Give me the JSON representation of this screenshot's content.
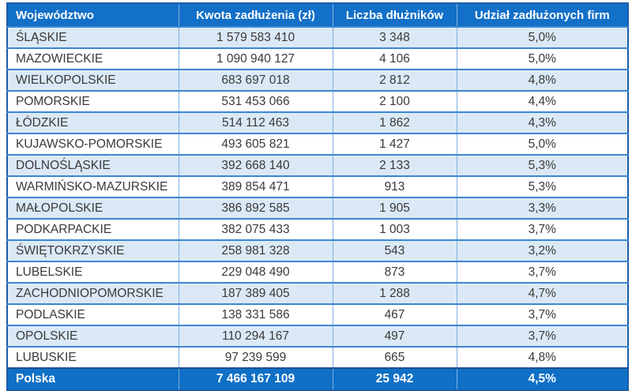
{
  "colors": {
    "header_bg": "#1370c8",
    "footer_bg": "#0f70c6",
    "row_alt_bg": "#dbe9f6",
    "row_bg": "#ffffff",
    "grid_vertical": "#7fb0e0",
    "grid_horizontal": "#3d86d2",
    "footer_divider": "#1a4f8f",
    "outer_border": "#1d5ca6",
    "body_text": "#3a3a3a",
    "header_text": "#ffffff"
  },
  "table": {
    "columns": [
      {
        "label": "Województwo"
      },
      {
        "label": "Kwota zadłużenia (zł)"
      },
      {
        "label": "Liczba dłużników"
      },
      {
        "label": "Udział zadłużonych firm"
      }
    ],
    "rows": [
      {
        "wojewodztwo": "ŚLĄSKIE",
        "kwota": "1 579 583 410",
        "liczba": "3 348",
        "udzial": "5,0%"
      },
      {
        "wojewodztwo": "MAZOWIECKIE",
        "kwota": "1 090 940 127",
        "liczba": "4 106",
        "udzial": "5,0%"
      },
      {
        "wojewodztwo": "WIELKOPOLSKIE",
        "kwota": "683 697 018",
        "liczba": "2 812",
        "udzial": "4,8%"
      },
      {
        "wojewodztwo": "POMORSKIE",
        "kwota": "531 453 066",
        "liczba": "2 100",
        "udzial": "4,4%"
      },
      {
        "wojewodztwo": "ŁÓDZKIE",
        "kwota": "514 112 463",
        "liczba": "1 862",
        "udzial": "4,3%"
      },
      {
        "wojewodztwo": "KUJAWSKO-POMORSKIE",
        "kwota": "493 605 821",
        "liczba": "1 427",
        "udzial": "5,0%"
      },
      {
        "wojewodztwo": "DOLNOŚLĄSKIE",
        "kwota": "392 668 140",
        "liczba": "2 133",
        "udzial": "5,3%"
      },
      {
        "wojewodztwo": "WARMIŃSKO-MAZURSKIE",
        "kwota": "389 854 471",
        "liczba": "913",
        "udzial": "5,3%"
      },
      {
        "wojewodztwo": "MAŁOPOLSKIE",
        "kwota": "386 892 585",
        "liczba": "1 905",
        "udzial": "3,3%"
      },
      {
        "wojewodztwo": "PODKARPACKIE",
        "kwota": "382 075 433",
        "liczba": "1 003",
        "udzial": "3,7%"
      },
      {
        "wojewodztwo": "ŚWIĘTOKRZYSKIE",
        "kwota": "258 981 328",
        "liczba": "543",
        "udzial": "3,2%"
      },
      {
        "wojewodztwo": "LUBELSKIE",
        "kwota": "229 048 490",
        "liczba": "873",
        "udzial": "3,7%"
      },
      {
        "wojewodztwo": "ZACHODNIOPOMORSKIE",
        "kwota": "187 389 405",
        "liczba": "1 288",
        "udzial": "4,7%"
      },
      {
        "wojewodztwo": "PODLASKIE",
        "kwota": "138 331 586",
        "liczba": "467",
        "udzial": "3,7%"
      },
      {
        "wojewodztwo": "OPOLSKIE",
        "kwota": "110 294 167",
        "liczba": "497",
        "udzial": "3,7%"
      },
      {
        "wojewodztwo": "LUBUSKIE",
        "kwota": "97 239 599",
        "liczba": "665",
        "udzial": "4,8%"
      }
    ],
    "footer": {
      "wojewodztwo": "Polska",
      "kwota": "7 466 167 109",
      "liczba": "25 942",
      "udzial": "4,5%"
    }
  },
  "chart_data": {
    "type": "table",
    "title": "",
    "columns": [
      "Województwo",
      "Kwota zadłużenia (zł)",
      "Liczba dłużników",
      "Udział zadłużonych firm"
    ],
    "rows": [
      [
        "ŚLĄSKIE",
        1579583410,
        3348,
        "5,0%"
      ],
      [
        "MAZOWIECKIE",
        1090940127,
        4106,
        "5,0%"
      ],
      [
        "WIELKOPOLSKIE",
        683697018,
        2812,
        "4,8%"
      ],
      [
        "POMORSKIE",
        531453066,
        2100,
        "4,4%"
      ],
      [
        "ŁÓDZKIE",
        514112463,
        1862,
        "4,3%"
      ],
      [
        "KUJAWSKO-POMORSKIE",
        493605821,
        1427,
        "5,0%"
      ],
      [
        "DOLNOŚLĄSKIE",
        392668140,
        2133,
        "5,3%"
      ],
      [
        "WARMIŃSKO-MAZURSKIE",
        389854471,
        913,
        "5,3%"
      ],
      [
        "MAŁOPOLSKIE",
        386892585,
        1905,
        "3,3%"
      ],
      [
        "PODKARPACKIE",
        382075433,
        1003,
        "3,7%"
      ],
      [
        "ŚWIĘTOKRZYSKIE",
        258981328,
        543,
        "3,2%"
      ],
      [
        "LUBELSKIE",
        229048490,
        873,
        "3,7%"
      ],
      [
        "ZACHODNIOPOMORSKIE",
        187389405,
        1288,
        "4,7%"
      ],
      [
        "PODLASKIE",
        138331586,
        467,
        "3,7%"
      ],
      [
        "OPOLSKIE",
        110294167,
        497,
        "3,7%"
      ],
      [
        "LUBUSKIE",
        97239599,
        665,
        "4,8%"
      ]
    ],
    "totals_row": [
      "Polska",
      7466167109,
      25942,
      "4,5%"
    ]
  }
}
